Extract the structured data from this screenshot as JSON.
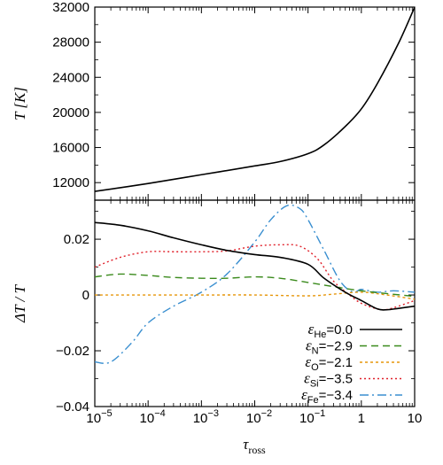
{
  "chart_data": [
    {
      "type": "line",
      "panel": "top",
      "ylabel": "T [K]",
      "xscale": "log",
      "xlim": [
        1e-05,
        10
      ],
      "ylim": [
        10000,
        32000
      ],
      "yticks": [
        12000,
        16000,
        20000,
        24000,
        28000,
        32000
      ],
      "series": [
        {
          "color": "#000000",
          "x": [
            1e-05,
            0.0001,
            0.001,
            0.01,
            0.03,
            0.1,
            0.2,
            0.5,
            1,
            2,
            5,
            10
          ],
          "y": [
            11000,
            11900,
            12900,
            13900,
            14400,
            15300,
            16300,
            18400,
            20400,
            23300,
            27900,
            32000
          ]
        }
      ]
    },
    {
      "type": "line",
      "panel": "bottom",
      "xlabel": "τross",
      "ylabel": "ΔT / T",
      "xscale": "log",
      "xlim": [
        1e-05,
        10
      ],
      "ylim": [
        -0.04,
        0.034
      ],
      "xticks": [
        "10−5",
        "10−4",
        "10−3",
        "10−2",
        "10−1",
        "1",
        "10"
      ],
      "yticks": [
        -0.04,
        -0.02,
        0,
        0.02
      ],
      "legend": "bottom-right",
      "series": [
        {
          "name": "He",
          "legend_eps": "ε",
          "legend_value": "=0.0",
          "color": "#000000",
          "dash": "solid",
          "x": [
            1e-05,
            3e-05,
            0.0001,
            0.0003,
            0.001,
            0.003,
            0.01,
            0.03,
            0.1,
            0.2,
            0.5,
            1,
            2,
            3,
            5,
            10
          ],
          "y": [
            0.026,
            0.025,
            0.023,
            0.0205,
            0.018,
            0.016,
            0.0145,
            0.0135,
            0.011,
            0.006,
            0.001,
            -0.002,
            -0.005,
            -0.0053,
            -0.0048,
            -0.004
          ]
        },
        {
          "name": "N",
          "legend_eps": "ε",
          "legend_value": "=−2.9",
          "color": "#3a8a1c",
          "dash": "8,5",
          "x": [
            1e-05,
            3e-05,
            0.0001,
            0.0003,
            0.001,
            0.003,
            0.01,
            0.03,
            0.1,
            0.3,
            1,
            3,
            10
          ],
          "y": [
            0.0065,
            0.0075,
            0.007,
            0.0063,
            0.006,
            0.006,
            0.0065,
            0.006,
            0.0045,
            0.003,
            0.0015,
            0.0005,
            -0.0005
          ]
        },
        {
          "name": "O",
          "legend_eps": "ε",
          "legend_value": "=−2.1",
          "color": "#e6960a",
          "dash": "3,3",
          "x": [
            1e-05,
            0.0001,
            0.001,
            0.01,
            0.1,
            0.3,
            1,
            3,
            10
          ],
          "y": [
            0,
            0,
            0,
            0,
            -0.0003,
            0.0003,
            0.001,
            0,
            -0.0015
          ]
        },
        {
          "name": "Si",
          "legend_eps": "ε",
          "legend_value": "=−3.5",
          "color": "#e0202a",
          "dash": "2,3",
          "x": [
            1e-05,
            3e-05,
            0.0001,
            0.0003,
            0.001,
            0.003,
            0.01,
            0.03,
            0.07,
            0.15,
            0.3,
            0.6,
            1,
            2,
            3,
            5,
            10
          ],
          "y": [
            0.01,
            0.0135,
            0.0155,
            0.0155,
            0.0155,
            0.0158,
            0.0175,
            0.018,
            0.0175,
            0.013,
            0.005,
            0,
            -0.003,
            -0.005,
            -0.0052,
            -0.004,
            -0.002
          ]
        },
        {
          "name": "Fe",
          "legend_eps": "ε",
          "legend_value": "=−3.4",
          "color": "#3a8fd0",
          "dash": "10,4,2,4",
          "x": [
            1e-05,
            2e-05,
            5e-05,
            0.0001,
            0.0003,
            0.001,
            0.003,
            0.01,
            0.02,
            0.04,
            0.07,
            0.1,
            0.2,
            0.4,
            0.7,
            1,
            2,
            4,
            10
          ],
          "y": [
            -0.024,
            -0.024,
            -0.017,
            -0.01,
            -0.004,
            0.001,
            0.0075,
            0.019,
            0.027,
            0.032,
            0.031,
            0.027,
            0.016,
            0.005,
            0.001,
            0.002,
            0.001,
            0.0015,
            0.001
          ]
        }
      ]
    }
  ]
}
